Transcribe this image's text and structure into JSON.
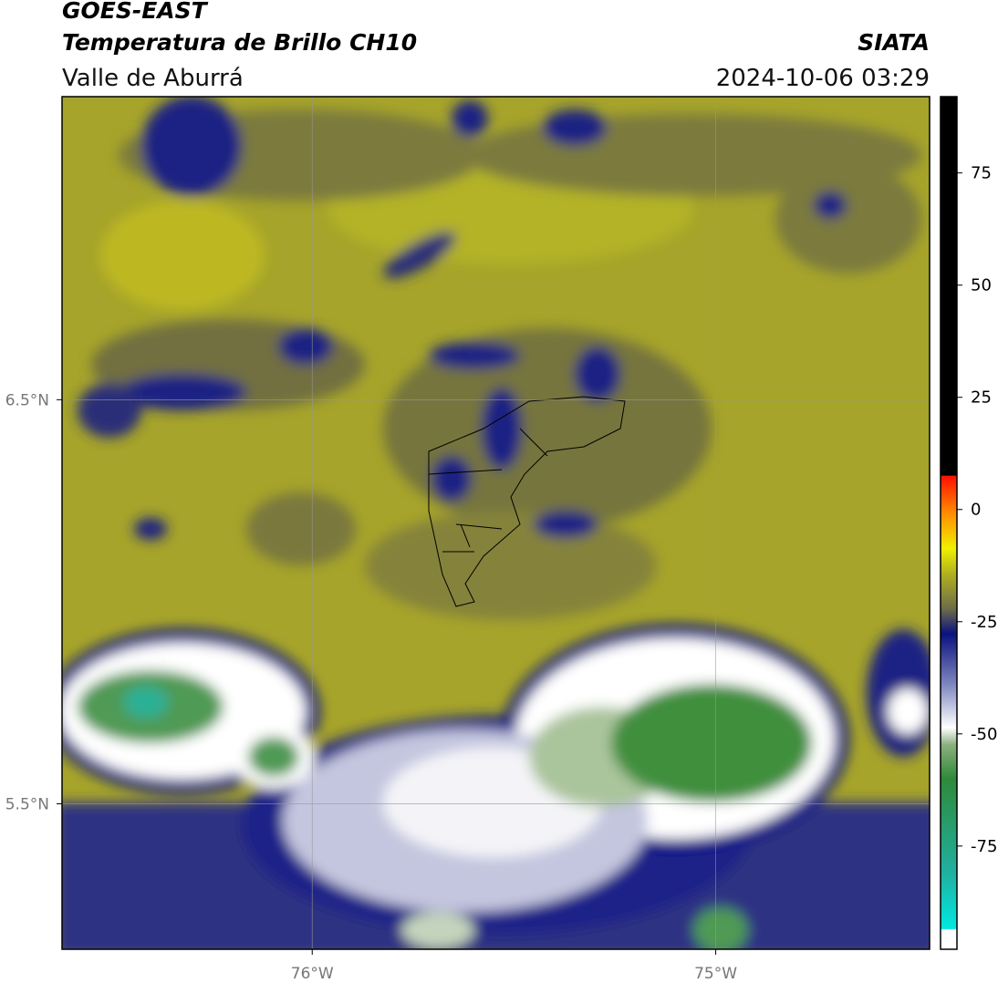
{
  "header": {
    "title": "GOES-EAST",
    "subtitle": "Temperatura de Brillo CH10",
    "region": "Valle de Aburrá",
    "source": "SIATA",
    "datetime": "2024-10-06 03:29"
  },
  "map": {
    "xlim": [
      -76.62,
      -74.47
    ],
    "ylim": [
      5.14,
      7.25
    ],
    "xticks": [
      {
        "value": -76,
        "label": "76°W"
      },
      {
        "value": -75,
        "label": "75°W"
      }
    ],
    "yticks": [
      {
        "value": 6.5,
        "label": "6.5°N"
      },
      {
        "value": 5.5,
        "label": "5.5°N"
      }
    ]
  },
  "colorbar": {
    "lim": [
      -98,
      92
    ],
    "ticks": [
      75,
      50,
      25,
      0,
      -25,
      -50,
      -75
    ]
  }
}
